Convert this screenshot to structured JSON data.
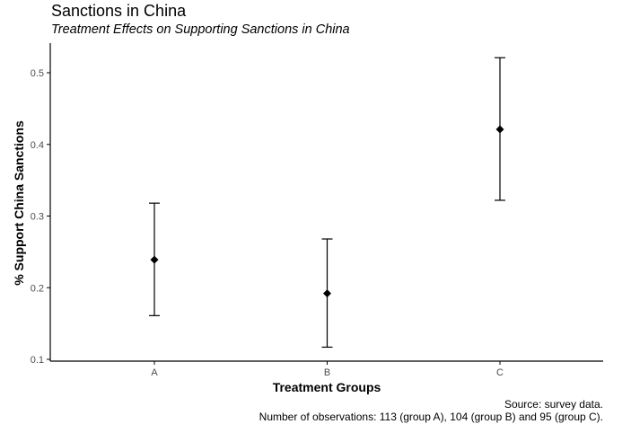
{
  "chart_data": {
    "type": "scatter",
    "title": "Sanctions in China",
    "subtitle": "Treatment Effects on Supporting Sanctions in China",
    "xlabel": "Treatment Groups",
    "ylabel": "% Support China Sanctions",
    "categories": [
      "A",
      "B",
      "C"
    ],
    "series": [
      {
        "values": [
          0.239,
          0.192,
          0.421
        ],
        "lower": [
          0.161,
          0.117,
          0.322
        ],
        "upper": [
          0.318,
          0.268,
          0.521
        ]
      }
    ],
    "yticks": [
      0.1,
      0.2,
      0.3,
      0.4,
      0.5
    ],
    "ytick_labels": [
      "0.1",
      "0.2",
      "0.3",
      "0.4",
      "0.5"
    ],
    "ylim": [
      0.1,
      0.5
    ],
    "grid": false,
    "caption": [
      "Source: survey data.",
      "Number of observations: 113 (group A), 104 (group B) and 95 (group C)."
    ],
    "colors": {
      "point": "#000000",
      "errorbar": "#000000",
      "axis": "#000000"
    }
  }
}
